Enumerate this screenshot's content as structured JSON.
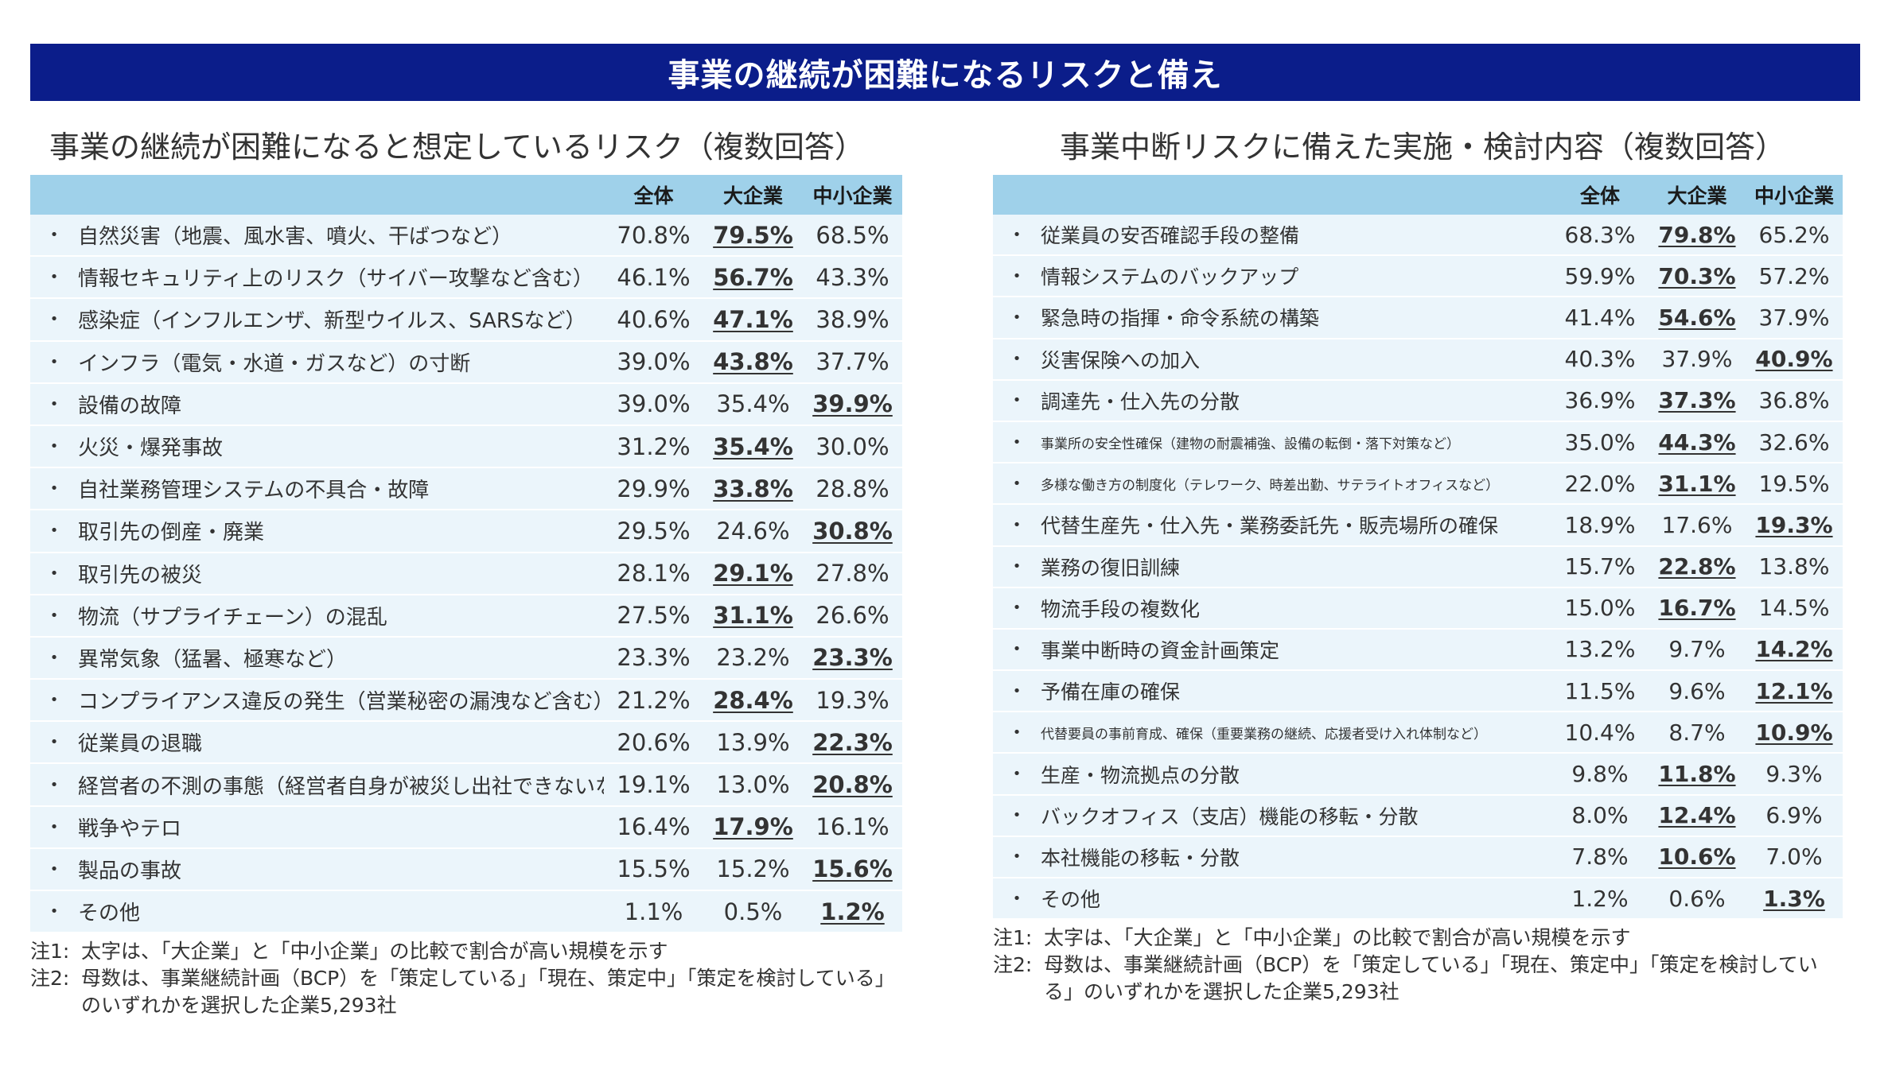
{
  "banner_title": "事業の継続が困難になるリスクと備え",
  "left": {
    "title": "事業の継続が困難になると想定しているリスク（複数回答）",
    "headers": [
      "全体",
      "大企業",
      "中小企業"
    ],
    "rows": [
      {
        "label": "自然災害（地震、風水害、噴火、干ばつなど）",
        "v": [
          "70.8%",
          "79.5%",
          "68.5%"
        ],
        "hi": 1
      },
      {
        "label": "情報セキュリティ上のリスク（サイバー攻撃など含む）",
        "v": [
          "46.1%",
          "56.7%",
          "43.3%"
        ],
        "hi": 1
      },
      {
        "label": "感染症（インフルエンザ、新型ウイルス、SARSなど）",
        "v": [
          "40.6%",
          "47.1%",
          "38.9%"
        ],
        "hi": 1
      },
      {
        "label": "インフラ（電気・水道・ガスなど）の寸断",
        "v": [
          "39.0%",
          "43.8%",
          "37.7%"
        ],
        "hi": 1
      },
      {
        "label": "設備の故障",
        "v": [
          "39.0%",
          "35.4%",
          "39.9%"
        ],
        "hi": 2
      },
      {
        "label": "火災・爆発事故",
        "v": [
          "31.2%",
          "35.4%",
          "30.0%"
        ],
        "hi": 1
      },
      {
        "label": "自社業務管理システムの不具合・故障",
        "v": [
          "29.9%",
          "33.8%",
          "28.8%"
        ],
        "hi": 1
      },
      {
        "label": "取引先の倒産・廃業",
        "v": [
          "29.5%",
          "24.6%",
          "30.8%"
        ],
        "hi": 2
      },
      {
        "label": "取引先の被災",
        "v": [
          "28.1%",
          "29.1%",
          "27.8%"
        ],
        "hi": 1
      },
      {
        "label": "物流（サプライチェーン）の混乱",
        "v": [
          "27.5%",
          "31.1%",
          "26.6%"
        ],
        "hi": 1
      },
      {
        "label": "異常気象（猛暑、極寒など）",
        "v": [
          "23.3%",
          "23.2%",
          "23.3%"
        ],
        "hi": 2
      },
      {
        "label": "コンプライアンス違反の発生（営業秘密の漏洩など含む）",
        "v": [
          "21.2%",
          "28.4%",
          "19.3%"
        ],
        "hi": 1
      },
      {
        "label": "従業員の退職",
        "v": [
          "20.6%",
          "13.9%",
          "22.3%"
        ],
        "hi": 2
      },
      {
        "label": "経営者の不測の事態（経営者自身が被災し出社できないなど）",
        "v": [
          "19.1%",
          "13.0%",
          "20.8%"
        ],
        "hi": 2
      },
      {
        "label": "戦争やテロ",
        "v": [
          "16.4%",
          "17.9%",
          "16.1%"
        ],
        "hi": 1
      },
      {
        "label": "製品の事故",
        "v": [
          "15.5%",
          "15.2%",
          "15.6%"
        ],
        "hi": 2
      },
      {
        "label": "その他",
        "v": [
          "1.1%",
          "0.5%",
          "1.2%"
        ],
        "hi": 2
      }
    ],
    "notes": [
      {
        "k": "注1:",
        "t": "太字は、「大企業」と「中小企業」の比較で割合が高い規模を示す"
      },
      {
        "k": "注2:",
        "t": "母数は、事業継続計画（BCP）を「策定している」「現在、策定中」「策定を検討している」のいずれかを選択した企業5,293社"
      }
    ]
  },
  "right": {
    "title": "事業中断リスクに備えた実施・検討内容（複数回答）",
    "headers": [
      "全体",
      "大企業",
      "中小企業"
    ],
    "rows": [
      {
        "label": "従業員の安否確認手段の整備",
        "v": [
          "68.3%",
          "79.8%",
          "65.2%"
        ],
        "hi": 1
      },
      {
        "label": "情報システムのバックアップ",
        "v": [
          "59.9%",
          "70.3%",
          "57.2%"
        ],
        "hi": 1
      },
      {
        "label": "緊急時の指揮・命令系統の構築",
        "v": [
          "41.4%",
          "54.6%",
          "37.9%"
        ],
        "hi": 1
      },
      {
        "label": "災害保険への加入",
        "v": [
          "40.3%",
          "37.9%",
          "40.9%"
        ],
        "hi": 2
      },
      {
        "label": "調達先・仕入先の分散",
        "v": [
          "36.9%",
          "37.3%",
          "36.8%"
        ],
        "hi": 1
      },
      {
        "label": "事業所の安全性確保（建物の耐震補強、設備の転倒・落下対策など）",
        "v": [
          "35.0%",
          "44.3%",
          "32.6%"
        ],
        "hi": 1,
        "small": true
      },
      {
        "label": "多様な働き方の制度化（テレワーク、時差出勤、サテライトオフィスなど）",
        "v": [
          "22.0%",
          "31.1%",
          "19.5%"
        ],
        "hi": 1,
        "small": true
      },
      {
        "label": "代替生産先・仕入先・業務委託先・販売場所の確保",
        "v": [
          "18.9%",
          "17.6%",
          "19.3%"
        ],
        "hi": 2
      },
      {
        "label": "業務の復旧訓練",
        "v": [
          "15.7%",
          "22.8%",
          "13.8%"
        ],
        "hi": 1
      },
      {
        "label": "物流手段の複数化",
        "v": [
          "15.0%",
          "16.7%",
          "14.5%"
        ],
        "hi": 1
      },
      {
        "label": "事業中断時の資金計画策定",
        "v": [
          "13.2%",
          "9.7%",
          "14.2%"
        ],
        "hi": 2
      },
      {
        "label": "予備在庫の確保",
        "v": [
          "11.5%",
          "9.6%",
          "12.1%"
        ],
        "hi": 2
      },
      {
        "label": "代替要員の事前育成、確保（重要業務の継続、応援者受け入れ体制など）",
        "v": [
          "10.4%",
          "8.7%",
          "10.9%"
        ],
        "hi": 2,
        "small": true
      },
      {
        "label": "生産・物流拠点の分散",
        "v": [
          "9.8%",
          "11.8%",
          "9.3%"
        ],
        "hi": 1
      },
      {
        "label": "バックオフィス（支店）機能の移転・分散",
        "v": [
          "8.0%",
          "12.4%",
          "6.9%"
        ],
        "hi": 1
      },
      {
        "label": "本社機能の移転・分散",
        "v": [
          "7.8%",
          "10.6%",
          "7.0%"
        ],
        "hi": 1
      },
      {
        "label": "その他",
        "v": [
          "1.2%",
          "0.6%",
          "1.3%"
        ],
        "hi": 2
      }
    ],
    "notes": [
      {
        "k": "注1:",
        "t": "太字は、「大企業」と「中小企業」の比較で割合が高い規模を示す"
      },
      {
        "k": "注2:",
        "t": "母数は、事業継続計画（BCP）を「策定している」「現在、策定中」「策定を検討している」のいずれかを選択した企業5,293社"
      }
    ]
  }
}
